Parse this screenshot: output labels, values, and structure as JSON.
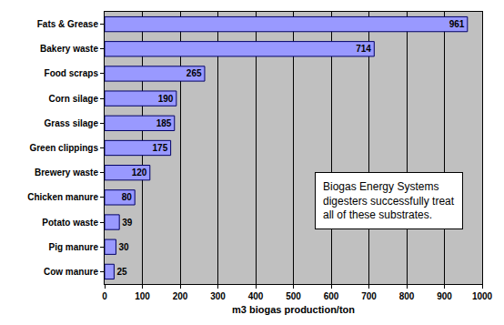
{
  "chart_data": {
    "type": "bar",
    "orientation": "horizontal",
    "categories": [
      "Fats & Grease",
      "Bakery waste",
      "Food scraps",
      "Corn silage",
      "Grass silage",
      "Green clippings",
      "Brewery waste",
      "Chicken manure",
      "Potato waste",
      "Pig manure",
      "Cow manure"
    ],
    "values": [
      961,
      714,
      265,
      190,
      185,
      175,
      120,
      80,
      39,
      30,
      25
    ],
    "color": "#9999ff",
    "x_label": "m3 biogas production/ton",
    "xlim": [
      0,
      1000
    ],
    "xticks": [
      0,
      100,
      200,
      300,
      400,
      500,
      600,
      700,
      800,
      900,
      1000
    ],
    "grid": true,
    "data_labels": true,
    "annotation": [
      "Biogas Energy Systems",
      "digesters successfully treat",
      "all of these substrates."
    ]
  }
}
